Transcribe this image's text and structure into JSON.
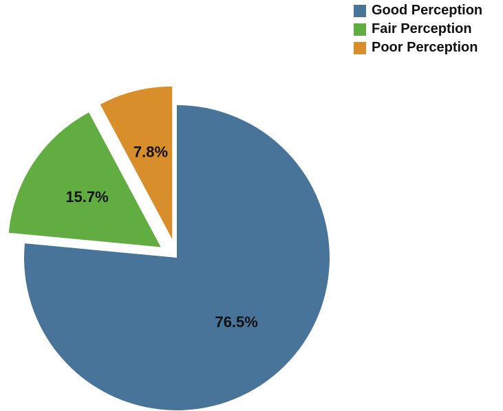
{
  "chart_data": {
    "type": "pie",
    "title": "",
    "series": [
      {
        "name": "Good Perception",
        "value": 76.5,
        "label": "76.5%",
        "color": "#48749a",
        "exploded": false
      },
      {
        "name": "Fair Perception",
        "value": 15.7,
        "label": "15.7%",
        "color": "#61ad41",
        "exploded": true
      },
      {
        "name": "Poor Perception",
        "value": 7.8,
        "label": "7.8%",
        "color": "#d98e2c",
        "exploded": true
      }
    ],
    "start_angle_deg": 90,
    "direction": "clockwise",
    "legend": {
      "position": "top-right",
      "entries": [
        "Good Perception",
        "Fair Perception",
        "Poor Perception"
      ]
    }
  }
}
